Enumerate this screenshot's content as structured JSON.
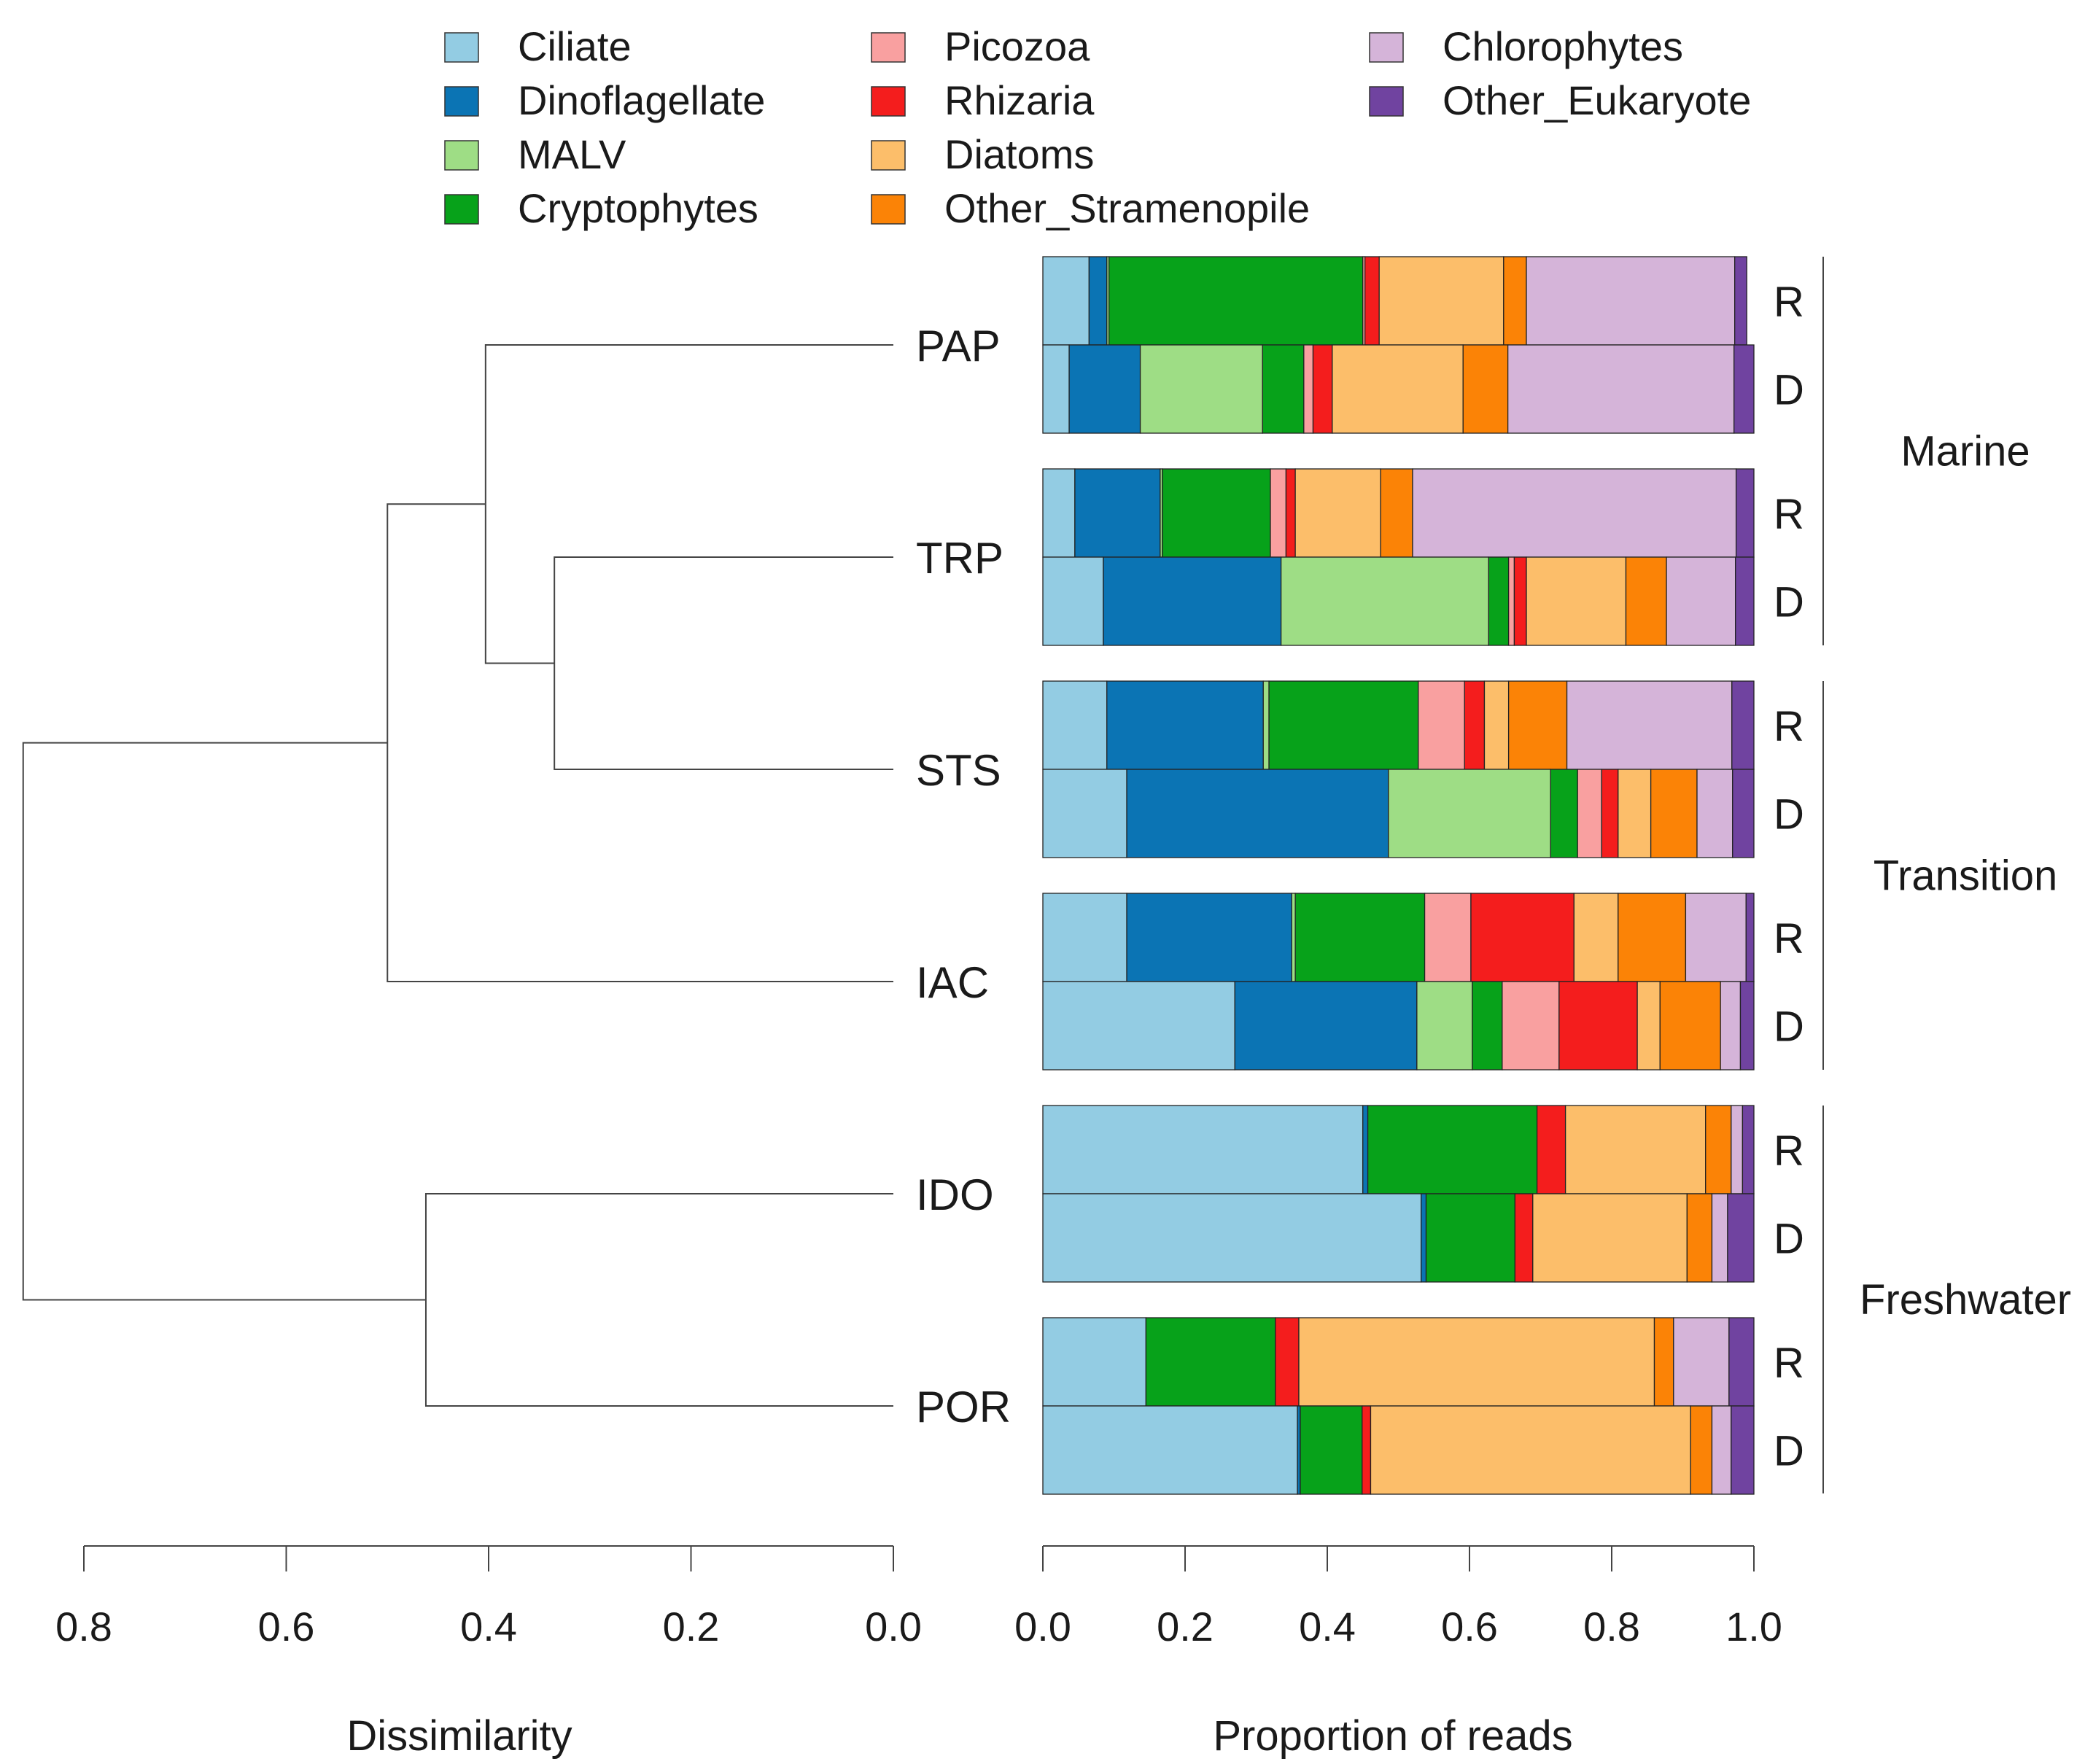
{
  "chart_data": {
    "type": "stacked-bar-with-dendrogram",
    "categories": [
      "Ciliate",
      "Dinoflagellate",
      "MALV",
      "Cryptophytes",
      "Picozoa",
      "Rhizaria",
      "Diatoms",
      "Other_Stramenopile",
      "Chlorophytes",
      "Other_Eukaryote"
    ],
    "colors": [
      "#93cce3",
      "#0b74b4",
      "#9edd85",
      "#07a21a",
      "#f9a0a0",
      "#f41d1d",
      "#fcbe6a",
      "#fb8306",
      "#d5b4d9",
      "#7043a0"
    ],
    "legend": [
      {
        "label": "Ciliate",
        "color": "#93cce3"
      },
      {
        "label": "Dinoflagellate",
        "color": "#0b74b4"
      },
      {
        "label": "MALV",
        "color": "#9edd85"
      },
      {
        "label": "Cryptophytes",
        "color": "#07a21a"
      },
      {
        "label": "Picozoa",
        "color": "#f9a0a0"
      },
      {
        "label": "Rhizaria",
        "color": "#f41d1d"
      },
      {
        "label": "Diatoms",
        "color": "#fcbe6a"
      },
      {
        "label": "Other_Stramenopile",
        "color": "#fb8306"
      },
      {
        "label": "Chlorophytes",
        "color": "#d5b4d9"
      },
      {
        "label": "Other_Eukaryote",
        "color": "#7043a0"
      }
    ],
    "sites": [
      {
        "name": "PAP",
        "R": [
          0.065,
          0.025,
          0.003,
          0.357,
          0.003,
          0.02,
          0.175,
          0.032,
          0.293,
          0.017
        ],
        "D": [
          0.037,
          0.1,
          0.172,
          0.058,
          0.013,
          0.027,
          0.184,
          0.063,
          0.318,
          0.028
        ]
      },
      {
        "name": "TRP",
        "R": [
          0.045,
          0.12,
          0.003,
          0.152,
          0.022,
          0.013,
          0.12,
          0.045,
          0.455,
          0.025
        ],
        "D": [
          0.085,
          0.25,
          0.292,
          0.028,
          0.008,
          0.017,
          0.14,
          0.057,
          0.097,
          0.026
        ]
      },
      {
        "name": "STS",
        "R": [
          0.09,
          0.22,
          0.008,
          0.21,
          0.065,
          0.028,
          0.034,
          0.082,
          0.232,
          0.031
        ],
        "D": [
          0.118,
          0.368,
          0.228,
          0.038,
          0.034,
          0.023,
          0.046,
          0.065,
          0.05,
          0.03
        ]
      },
      {
        "name": "IAC",
        "R": [
          0.118,
          0.232,
          0.005,
          0.182,
          0.065,
          0.145,
          0.062,
          0.095,
          0.085,
          0.011
        ],
        "D": [
          0.27,
          0.256,
          0.078,
          0.042,
          0.08,
          0.11,
          0.032,
          0.085,
          0.028,
          0.019
        ]
      },
      {
        "name": "IDO",
        "R": [
          0.45,
          0.007,
          0.0,
          0.238,
          0.0,
          0.04,
          0.197,
          0.036,
          0.016,
          0.016
        ],
        "D": [
          0.532,
          0.007,
          0.0,
          0.125,
          0.0,
          0.025,
          0.217,
          0.035,
          0.022,
          0.037
        ]
      },
      {
        "name": "POR",
        "R": [
          0.145,
          0.0,
          0.0,
          0.182,
          0.0,
          0.033,
          0.5,
          0.027,
          0.078,
          0.035
        ],
        "D": [
          0.358,
          0.004,
          0.0,
          0.087,
          0.0,
          0.012,
          0.45,
          0.03,
          0.027,
          0.032
        ]
      }
    ],
    "row_labels": {
      "R": "R",
      "D": "D"
    },
    "regions": [
      {
        "label": "Marine",
        "sites": [
          "PAP",
          "TRP"
        ]
      },
      {
        "label": "Transition",
        "sites": [
          "STS",
          "IAC"
        ]
      },
      {
        "label": "Freshwater",
        "sites": [
          "IDO",
          "POR"
        ]
      }
    ],
    "dendrogram": {
      "leaf_order": [
        "PAP",
        "TRP",
        "STS",
        "IAC",
        "IDO",
        "POR"
      ],
      "merges": [
        {
          "children": [
            "TRP",
            "STS"
          ],
          "height": 0.335
        },
        {
          "children": [
            "PAP",
            "TRP+STS"
          ],
          "height": 0.403
        },
        {
          "children": [
            "PAP+TRP+STS",
            "IAC"
          ],
          "height": 0.5
        },
        {
          "children": [
            "IDO",
            "POR"
          ],
          "height": 0.462
        },
        {
          "children": [
            "marine-transition",
            "freshwater"
          ],
          "height": 0.86
        }
      ]
    },
    "x_left": {
      "title": "Dissimilarity",
      "range": [
        0.8,
        0.0
      ],
      "ticks": [
        0.8,
        0.6,
        0.4,
        0.2,
        0.0
      ],
      "tick_labels": [
        "0.8",
        "0.6",
        "0.4",
        "0.2",
        "0.0"
      ]
    },
    "x_right": {
      "title": "Proportion of reads",
      "range": [
        0.0,
        1.0
      ],
      "ticks": [
        0.0,
        0.2,
        0.4,
        0.6,
        0.8,
        1.0
      ],
      "tick_labels": [
        "0.0",
        "0.2",
        "0.4",
        "0.6",
        "0.8",
        "1.0"
      ]
    }
  }
}
